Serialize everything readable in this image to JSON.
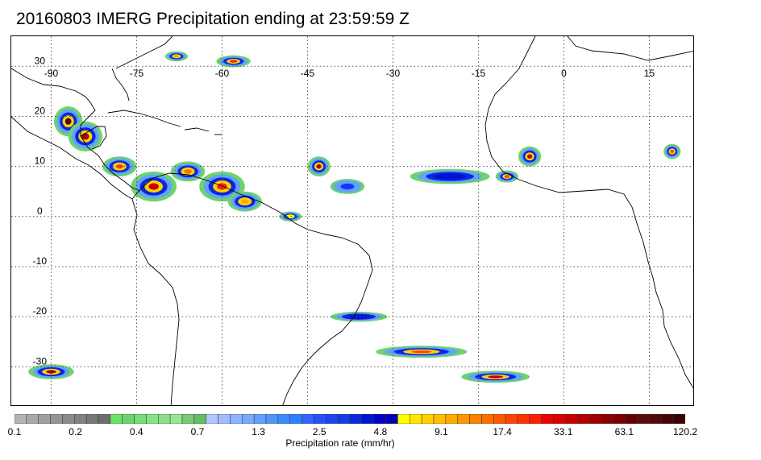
{
  "title": "20160803 IMERG Precipitation ending at 23:59:59 Z",
  "map": {
    "extent": {
      "lon_min": -97,
      "lon_max": 23,
      "lat_min": -38,
      "lat_max": 36
    },
    "grid_on": true,
    "lon_grid": [
      -90,
      -75,
      -60,
      -45,
      -30,
      -15,
      0,
      15
    ],
    "lat_grid": [
      30,
      20,
      10,
      0,
      -10,
      -20,
      -30
    ],
    "lon_labels": [
      "-90",
      "-75",
      "-60",
      "-45",
      "-30",
      "-15",
      "0",
      "15"
    ],
    "lat_labels": [
      "30",
      "20",
      "10",
      "0",
      "-10",
      "-20",
      "-30"
    ],
    "precip_clusters": [
      {
        "lon": -87,
        "lat": 19,
        "rx": 2.5,
        "ry": 3,
        "level": 0.95
      },
      {
        "lon": -84,
        "lat": 16,
        "rx": 3,
        "ry": 3,
        "level": 0.85
      },
      {
        "lon": -78,
        "lat": 10,
        "rx": 3,
        "ry": 2,
        "level": 0.7
      },
      {
        "lon": -72,
        "lat": 6,
        "rx": 4,
        "ry": 3,
        "level": 0.8
      },
      {
        "lon": -66,
        "lat": 9,
        "rx": 3,
        "ry": 2,
        "level": 0.65
      },
      {
        "lon": -60,
        "lat": 6,
        "rx": 4,
        "ry": 3,
        "level": 0.75
      },
      {
        "lon": -56,
        "lat": 3,
        "rx": 3,
        "ry": 2,
        "level": 0.6
      },
      {
        "lon": -48,
        "lat": 0,
        "rx": 2,
        "ry": 1,
        "level": 0.5
      },
      {
        "lon": -43,
        "lat": 10,
        "rx": 2,
        "ry": 2,
        "level": 0.85
      },
      {
        "lon": -38,
        "lat": 6,
        "rx": 3,
        "ry": 1.5,
        "level": 0.4
      },
      {
        "lon": -20,
        "lat": 8,
        "rx": 7,
        "ry": 1.5,
        "level": 0.45
      },
      {
        "lon": -10,
        "lat": 8,
        "rx": 2,
        "ry": 1.2,
        "level": 0.7
      },
      {
        "lon": -6,
        "lat": 12,
        "rx": 2,
        "ry": 2,
        "level": 0.8
      },
      {
        "lon": 19,
        "lat": 13,
        "rx": 1.5,
        "ry": 1.5,
        "level": 0.7
      },
      {
        "lon": -58,
        "lat": 31,
        "rx": 3,
        "ry": 1.2,
        "level": 0.75
      },
      {
        "lon": -68,
        "lat": 32,
        "rx": 2,
        "ry": 1,
        "level": 0.6
      },
      {
        "lon": -90,
        "lat": -31,
        "rx": 4,
        "ry": 1.5,
        "level": 0.85
      },
      {
        "lon": -25,
        "lat": -27,
        "rx": 8,
        "ry": 1.2,
        "level": 0.7
      },
      {
        "lon": -12,
        "lat": -32,
        "rx": 6,
        "ry": 1.2,
        "level": 0.8
      },
      {
        "lon": -36,
        "lat": -20,
        "rx": 5,
        "ry": 1,
        "level": 0.45
      }
    ]
  },
  "colorbar": {
    "title": "Precipitation rate (mm/hr)",
    "tick_labels": [
      "0.1",
      "0.2",
      "0.4",
      "0.7",
      "1.3",
      "2.5",
      "4.8",
      "9.1",
      "17.4",
      "33.1",
      "63.1",
      "120.2"
    ],
    "colors": [
      "#b4b4b4",
      "#aaaaaa",
      "#a0a0a0",
      "#969696",
      "#8c8c8c",
      "#828282",
      "#787878",
      "#6e6e6e",
      "#64e664",
      "#6ed26e",
      "#78dc78",
      "#82e682",
      "#8cdc8c",
      "#96e696",
      "#78c878",
      "#64be64",
      "#b4c8ff",
      "#a0beff",
      "#8cb4ff",
      "#78aaff",
      "#64a0ff",
      "#5096ff",
      "#3c8cff",
      "#2882ff",
      "#3264ff",
      "#2850fa",
      "#1e46f0",
      "#143ce6",
      "#0a28dc",
      "#0014d2",
      "#0000c8",
      "#0000b4",
      "#ffff00",
      "#ffe600",
      "#ffd200",
      "#ffbe00",
      "#ffaa00",
      "#ff9600",
      "#ff8200",
      "#ff6e00",
      "#ff5a00",
      "#ff4600",
      "#ff3200",
      "#ff1e00",
      "#f00000",
      "#dc0000",
      "#c80000",
      "#b40000",
      "#a00000",
      "#8c0000",
      "#780000",
      "#640000",
      "#5a0a0a",
      "#500a0a",
      "#460505",
      "#3c0000"
    ]
  }
}
